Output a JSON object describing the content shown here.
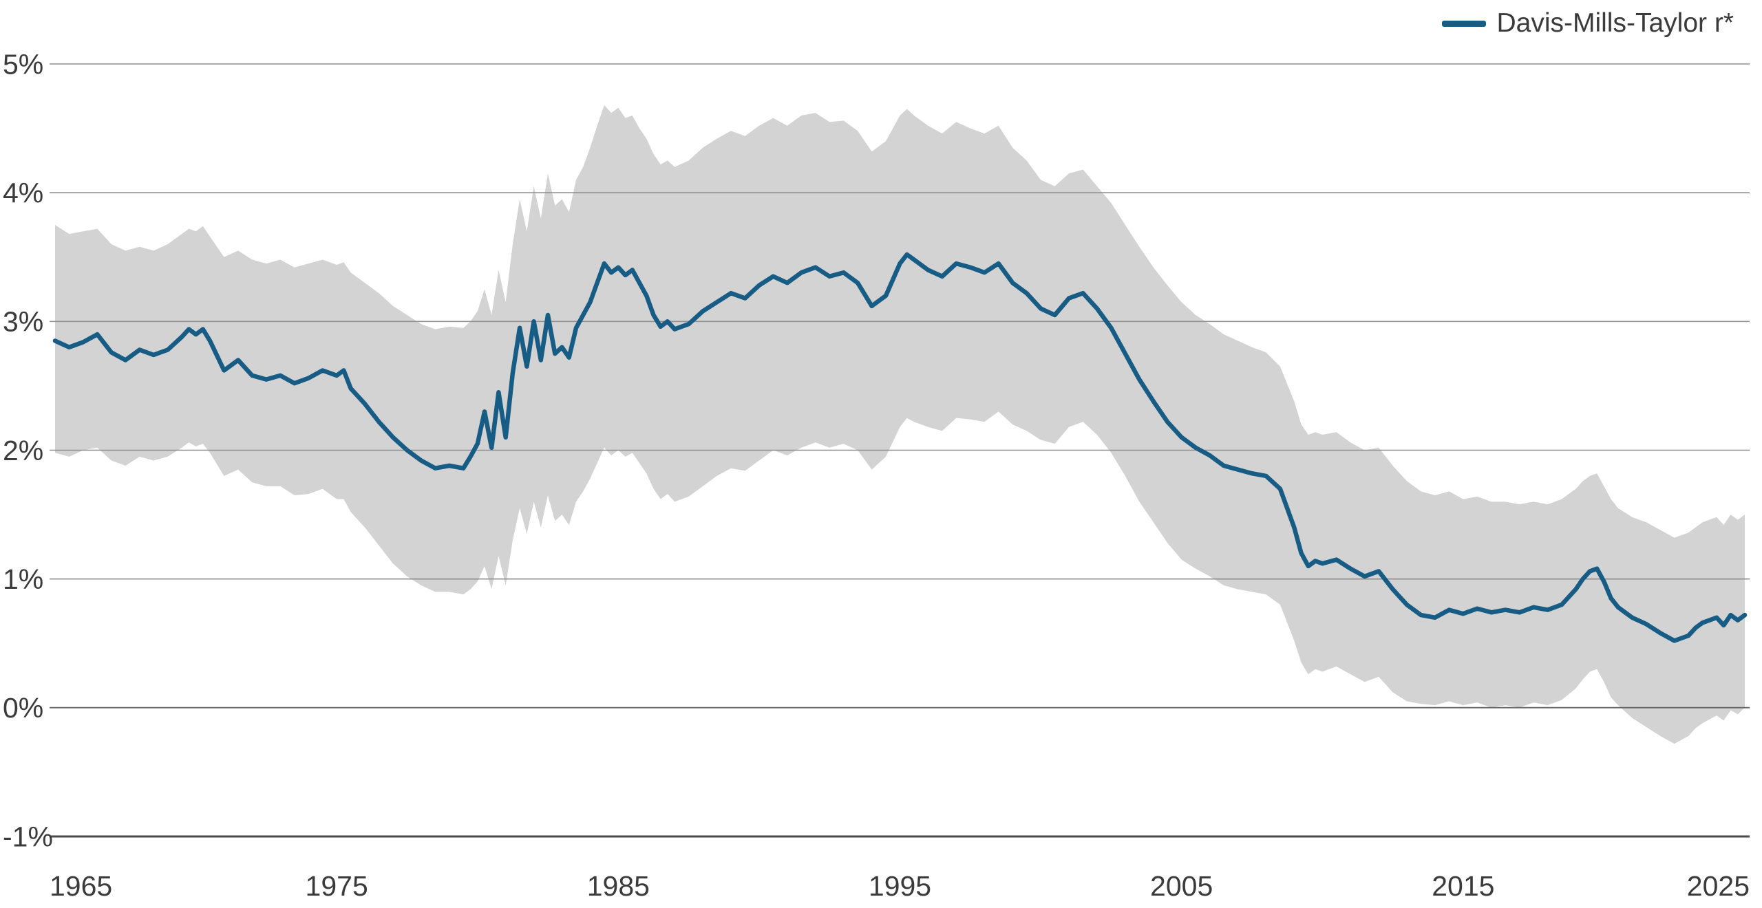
{
  "chart_data": {
    "type": "line",
    "title": "",
    "legend_label": "Davis-Mills-Taylor r*",
    "legend_position": "top-right",
    "line_color": "#175c84",
    "band_color": "#d3d3d3",
    "grid_color": "#8f8f8f",
    "zero_line_color": "#6b6b6b",
    "axis_color": "#4a4a4a",
    "text_color": "#3b3b3b",
    "background_color": "#ffffff",
    "grid": true,
    "xlabel": "",
    "ylabel": "",
    "xlim": [
      1965,
      2025
    ],
    "ylim": [
      -1,
      5
    ],
    "xticks": [
      1965,
      1975,
      1985,
      1995,
      2005,
      2015,
      2025
    ],
    "yticks": [
      5,
      4,
      3,
      2,
      1,
      0,
      -1
    ],
    "ytick_labels": [
      "5%",
      "4%",
      "3%",
      "2%",
      "1%",
      "0%",
      "-1%"
    ],
    "x": [
      1965,
      1965.5,
      1966,
      1966.5,
      1967,
      1967.5,
      1968,
      1968.5,
      1969,
      1969.5,
      1969.75,
      1970,
      1970.25,
      1970.5,
      1971,
      1971.5,
      1972,
      1972.5,
      1973,
      1973.5,
      1974,
      1974.5,
      1975,
      1975.25,
      1975.5,
      1976,
      1976.5,
      1977,
      1977.5,
      1978,
      1978.5,
      1979,
      1979.5,
      1979.75,
      1980,
      1980.25,
      1980.5,
      1980.75,
      1981,
      1981.25,
      1981.5,
      1981.75,
      1982,
      1982.25,
      1982.5,
      1982.75,
      1983,
      1983.25,
      1983.5,
      1983.75,
      1984,
      1984.25,
      1984.5,
      1984.75,
      1985,
      1985.25,
      1985.5,
      1985.75,
      1986,
      1986.25,
      1986.5,
      1986.75,
      1987,
      1987.5,
      1988,
      1988.5,
      1989,
      1989.5,
      1990,
      1990.5,
      1991,
      1991.5,
      1992,
      1992.5,
      1993,
      1993.5,
      1994,
      1994.5,
      1995,
      1995.25,
      1995.5,
      1996,
      1996.5,
      1997,
      1997.5,
      1998,
      1998.5,
      1999,
      1999.5,
      2000,
      2000.5,
      2001,
      2001.5,
      2002,
      2002.5,
      2003,
      2003.5,
      2004,
      2004.5,
      2005,
      2005.5,
      2006,
      2006.5,
      2007,
      2007.5,
      2008,
      2008.5,
      2009,
      2009.25,
      2009.5,
      2009.75,
      2010,
      2010.5,
      2011,
      2011.5,
      2012,
      2012.5,
      2013,
      2013.5,
      2014,
      2014.5,
      2015,
      2015.5,
      2016,
      2016.5,
      2017,
      2017.5,
      2018,
      2018.5,
      2019,
      2019.25,
      2019.5,
      2019.75,
      2020,
      2020.25,
      2020.5,
      2021,
      2021.5,
      2022,
      2022.5,
      2023,
      2023.25,
      2023.5,
      2024,
      2024.25,
      2024.5,
      2024.75,
      2025
    ],
    "series": [
      {
        "name": "Davis-Mills-Taylor r*",
        "role": "line",
        "values": [
          2.85,
          2.8,
          2.84,
          2.9,
          2.76,
          2.7,
          2.78,
          2.74,
          2.78,
          2.88,
          2.94,
          2.9,
          2.94,
          2.85,
          2.62,
          2.7,
          2.58,
          2.55,
          2.58,
          2.52,
          2.56,
          2.62,
          2.58,
          2.62,
          2.48,
          2.36,
          2.22,
          2.1,
          2.0,
          1.92,
          1.86,
          1.88,
          1.86,
          1.95,
          2.05,
          2.3,
          2.02,
          2.45,
          2.1,
          2.6,
          2.95,
          2.65,
          3.0,
          2.7,
          3.05,
          2.75,
          2.8,
          2.72,
          2.95,
          3.05,
          3.15,
          3.3,
          3.45,
          3.38,
          3.42,
          3.36,
          3.4,
          3.3,
          3.2,
          3.05,
          2.96,
          3.0,
          2.94,
          2.98,
          3.08,
          3.15,
          3.22,
          3.18,
          3.28,
          3.35,
          3.3,
          3.38,
          3.42,
          3.35,
          3.38,
          3.3,
          3.12,
          3.2,
          3.45,
          3.52,
          3.48,
          3.4,
          3.35,
          3.45,
          3.42,
          3.38,
          3.45,
          3.3,
          3.22,
          3.1,
          3.05,
          3.18,
          3.22,
          3.1,
          2.95,
          2.75,
          2.55,
          2.38,
          2.22,
          2.1,
          2.02,
          1.96,
          1.88,
          1.85,
          1.82,
          1.8,
          1.7,
          1.4,
          1.2,
          1.1,
          1.14,
          1.12,
          1.15,
          1.08,
          1.02,
          1.06,
          0.92,
          0.8,
          0.72,
          0.7,
          0.76,
          0.73,
          0.77,
          0.74,
          0.76,
          0.74,
          0.78,
          0.76,
          0.8,
          0.92,
          1.0,
          1.06,
          1.08,
          0.98,
          0.85,
          0.78,
          0.7,
          0.65,
          0.58,
          0.52,
          0.56,
          0.62,
          0.66,
          0.7,
          0.64,
          0.72,
          0.68,
          0.72
        ]
      },
      {
        "name": "confidence band upper",
        "role": "band-upper",
        "values": [
          3.75,
          3.68,
          3.7,
          3.72,
          3.6,
          3.55,
          3.58,
          3.55,
          3.6,
          3.68,
          3.72,
          3.7,
          3.74,
          3.66,
          3.5,
          3.55,
          3.48,
          3.45,
          3.48,
          3.42,
          3.45,
          3.48,
          3.44,
          3.46,
          3.38,
          3.3,
          3.22,
          3.12,
          3.05,
          2.98,
          2.94,
          2.96,
          2.95,
          3.0,
          3.08,
          3.25,
          3.05,
          3.4,
          3.15,
          3.6,
          3.95,
          3.7,
          4.05,
          3.8,
          4.15,
          3.9,
          3.95,
          3.85,
          4.1,
          4.2,
          4.35,
          4.52,
          4.68,
          4.62,
          4.66,
          4.58,
          4.6,
          4.5,
          4.42,
          4.3,
          4.22,
          4.25,
          4.2,
          4.25,
          4.35,
          4.42,
          4.48,
          4.44,
          4.52,
          4.58,
          4.52,
          4.6,
          4.62,
          4.55,
          4.56,
          4.48,
          4.32,
          4.4,
          4.6,
          4.65,
          4.6,
          4.52,
          4.46,
          4.55,
          4.5,
          4.46,
          4.52,
          4.35,
          4.25,
          4.1,
          4.05,
          4.15,
          4.18,
          4.05,
          3.92,
          3.75,
          3.58,
          3.42,
          3.28,
          3.15,
          3.05,
          2.98,
          2.9,
          2.85,
          2.8,
          2.76,
          2.65,
          2.38,
          2.2,
          2.12,
          2.14,
          2.12,
          2.14,
          2.06,
          2.0,
          2.02,
          1.88,
          1.76,
          1.68,
          1.65,
          1.68,
          1.62,
          1.64,
          1.6,
          1.6,
          1.58,
          1.6,
          1.58,
          1.62,
          1.7,
          1.76,
          1.8,
          1.82,
          1.72,
          1.62,
          1.55,
          1.48,
          1.44,
          1.38,
          1.32,
          1.36,
          1.4,
          1.44,
          1.48,
          1.42,
          1.5,
          1.46,
          1.5
        ]
      },
      {
        "name": "confidence band lower",
        "role": "band-lower",
        "values": [
          1.98,
          1.95,
          2.0,
          2.02,
          1.92,
          1.88,
          1.95,
          1.92,
          1.95,
          2.02,
          2.06,
          2.03,
          2.05,
          1.98,
          1.8,
          1.85,
          1.75,
          1.72,
          1.72,
          1.65,
          1.66,
          1.7,
          1.62,
          1.62,
          1.52,
          1.4,
          1.26,
          1.12,
          1.02,
          0.95,
          0.9,
          0.9,
          0.88,
          0.92,
          0.98,
          1.1,
          0.92,
          1.18,
          0.95,
          1.3,
          1.55,
          1.35,
          1.6,
          1.4,
          1.65,
          1.45,
          1.5,
          1.42,
          1.6,
          1.68,
          1.78,
          1.9,
          2.02,
          1.96,
          2.0,
          1.95,
          1.98,
          1.9,
          1.82,
          1.7,
          1.62,
          1.66,
          1.6,
          1.64,
          1.72,
          1.8,
          1.86,
          1.84,
          1.92,
          2.0,
          1.96,
          2.02,
          2.06,
          2.02,
          2.05,
          2.0,
          1.85,
          1.95,
          2.18,
          2.25,
          2.22,
          2.18,
          2.15,
          2.25,
          2.24,
          2.22,
          2.3,
          2.2,
          2.15,
          2.08,
          2.05,
          2.18,
          2.22,
          2.12,
          1.98,
          1.8,
          1.6,
          1.44,
          1.28,
          1.15,
          1.08,
          1.02,
          0.95,
          0.92,
          0.9,
          0.88,
          0.8,
          0.52,
          0.35,
          0.26,
          0.3,
          0.28,
          0.32,
          0.26,
          0.2,
          0.24,
          0.12,
          0.05,
          0.03,
          0.02,
          0.05,
          0.02,
          0.04,
          0.0,
          0.02,
          0.0,
          0.04,
          0.02,
          0.06,
          0.15,
          0.22,
          0.28,
          0.3,
          0.2,
          0.08,
          0.02,
          -0.08,
          -0.15,
          -0.22,
          -0.28,
          -0.22,
          -0.16,
          -0.12,
          -0.06,
          -0.1,
          -0.02,
          -0.05,
          0.0
        ]
      }
    ]
  }
}
